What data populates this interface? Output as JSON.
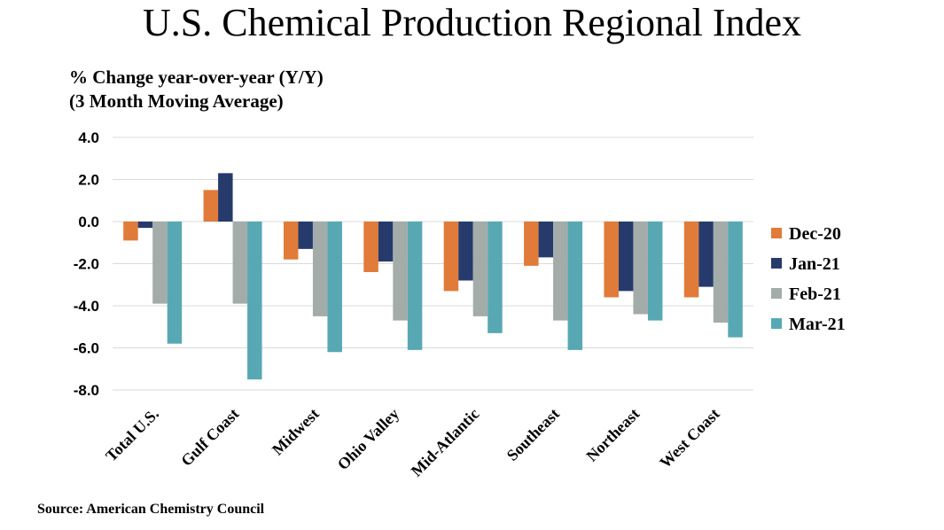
{
  "chart_data": {
    "type": "bar",
    "title": "U.S. Chemical Production Regional Index",
    "ylabel_lines": [
      "% Change year-over-year (Y/Y)",
      "(3 Month Moving Average)"
    ],
    "xlabel": "",
    "ylim": [
      -8.0,
      4.0
    ],
    "yticks": [
      "4.0",
      "2.0",
      "0.0",
      "-2.0",
      "-4.0",
      "-6.0",
      "-8.0"
    ],
    "ytick_values": [
      4,
      2,
      0,
      -2,
      -4,
      -6,
      -8
    ],
    "grid": true,
    "legend_position": "right",
    "categories": [
      "Total U.S.",
      "Gulf Coast",
      "Midwest",
      "Ohio Valley",
      "Mid-Atlantic",
      "Southeast",
      "Northeast",
      "West Coast"
    ],
    "series": [
      {
        "name": "Dec-20",
        "color": "#E07B39",
        "values": [
          -0.9,
          1.5,
          -1.8,
          -2.4,
          -3.3,
          -2.1,
          -3.6,
          -3.6
        ]
      },
      {
        "name": "Jan-21",
        "color": "#263B6B",
        "values": [
          -0.3,
          2.3,
          -1.3,
          -1.9,
          -2.8,
          -1.7,
          -3.3,
          -3.1
        ]
      },
      {
        "name": "Feb-21",
        "color": "#A3ACA8",
        "values": [
          -3.9,
          -3.9,
          -4.5,
          -4.7,
          -4.5,
          -4.7,
          -4.4,
          -4.8
        ]
      },
      {
        "name": "Mar-21",
        "color": "#58A8B4",
        "values": [
          -5.8,
          -7.5,
          -6.2,
          -6.1,
          -5.3,
          -6.1,
          -4.7,
          -5.5
        ]
      }
    ],
    "source": "Source: American Chemistry Council"
  }
}
